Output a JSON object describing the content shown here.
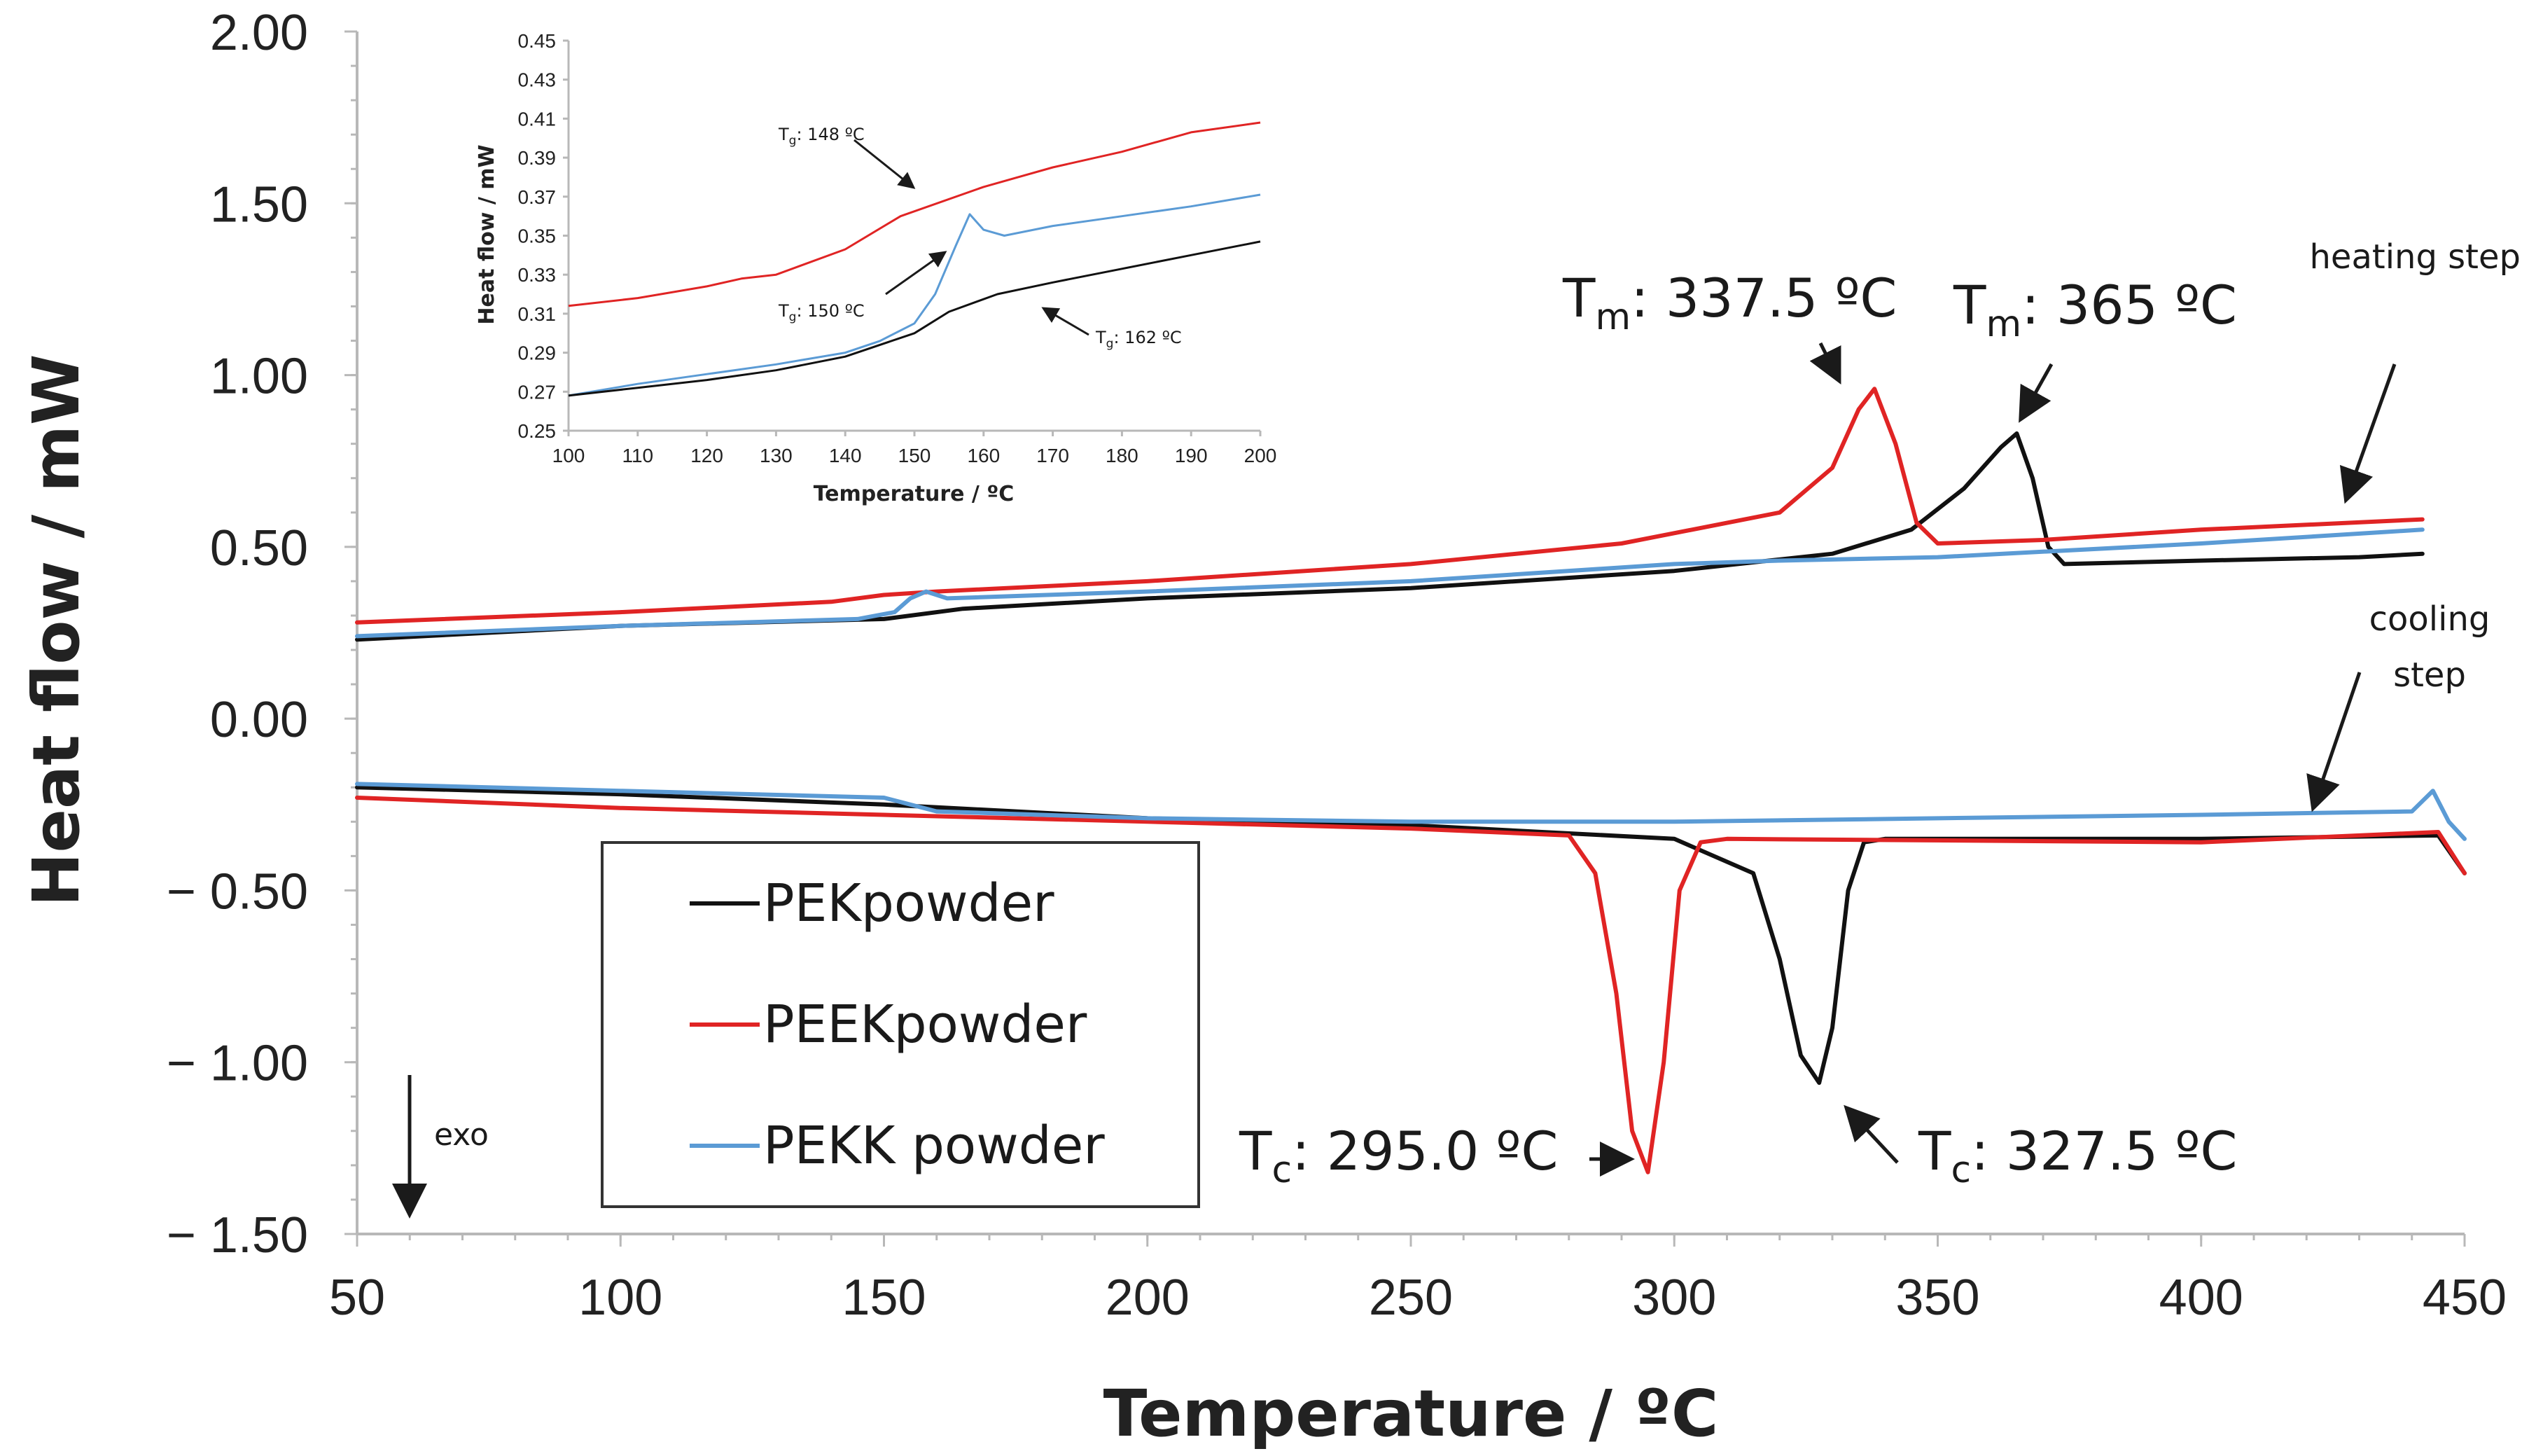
{
  "chart_data": [
    {
      "type": "line",
      "name": "main",
      "xlabel": "Temperature / ºC",
      "ylabel": "Heat flow / mW",
      "xlim": [
        50,
        450
      ],
      "ylim": [
        -1.5,
        2.0
      ],
      "x_ticks": [
        "50",
        "100",
        "150",
        "200",
        "250",
        "300",
        "350",
        "400",
        "450"
      ],
      "y_ticks": [
        "2.00",
        "1.50",
        "1.00",
        "0.50",
        "0.00",
        "− 0.50",
        "− 1.00",
        "− 1.50"
      ],
      "y_tick_values": [
        2.0,
        1.5,
        1.0,
        0.5,
        0.0,
        -0.5,
        -1.0,
        -1.5
      ],
      "legend": [
        {
          "label": "PEKpowder",
          "color": "#111111"
        },
        {
          "label": "PEEKpowder",
          "color": "#e02424"
        },
        {
          "label": "PEKK powder",
          "color": "#5b9bd5"
        }
      ],
      "series": [
        {
          "name": "PEK heating",
          "color": "#111111",
          "x": [
            50,
            100,
            150,
            165,
            200,
            250,
            300,
            330,
            345,
            355,
            362,
            365,
            368,
            371,
            374,
            400,
            430,
            442
          ],
          "y": [
            0.23,
            0.27,
            0.29,
            0.32,
            0.35,
            0.38,
            0.43,
            0.48,
            0.55,
            0.67,
            0.79,
            0.83,
            0.7,
            0.5,
            0.45,
            0.46,
            0.47,
            0.48
          ]
        },
        {
          "name": "PEEK heating",
          "color": "#e02424",
          "x": [
            50,
            100,
            140,
            150,
            160,
            200,
            250,
            290,
            320,
            330,
            335,
            338,
            342,
            346,
            350,
            370,
            400,
            442
          ],
          "y": [
            0.28,
            0.31,
            0.34,
            0.36,
            0.37,
            0.4,
            0.45,
            0.51,
            0.6,
            0.73,
            0.9,
            0.96,
            0.8,
            0.57,
            0.51,
            0.52,
            0.55,
            0.58
          ]
        },
        {
          "name": "PEKK heating",
          "color": "#5b9bd5",
          "x": [
            50,
            100,
            145,
            152,
            155,
            158,
            162,
            200,
            250,
            300,
            320,
            350,
            400,
            442
          ],
          "y": [
            0.24,
            0.27,
            0.29,
            0.31,
            0.35,
            0.37,
            0.35,
            0.37,
            0.4,
            0.45,
            0.46,
            0.47,
            0.51,
            0.55
          ]
        },
        {
          "name": "PEK cooling",
          "color": "#111111",
          "x": [
            50,
            100,
            150,
            200,
            250,
            300,
            315,
            320,
            324,
            327.5,
            330,
            333,
            336,
            340,
            400,
            445,
            450
          ],
          "y": [
            -0.2,
            -0.22,
            -0.25,
            -0.29,
            -0.31,
            -0.35,
            -0.45,
            -0.7,
            -0.98,
            -1.06,
            -0.9,
            -0.5,
            -0.36,
            -0.35,
            -0.35,
            -0.34,
            -0.45
          ]
        },
        {
          "name": "PEEK cooling",
          "color": "#e02424",
          "x": [
            50,
            100,
            150,
            200,
            250,
            280,
            285,
            289,
            292,
            295,
            298,
            301,
            305,
            310,
            400,
            445,
            450
          ],
          "y": [
            -0.23,
            -0.26,
            -0.28,
            -0.3,
            -0.32,
            -0.34,
            -0.45,
            -0.8,
            -1.2,
            -1.32,
            -1.0,
            -0.5,
            -0.36,
            -0.35,
            -0.36,
            -0.33,
            -0.45
          ]
        },
        {
          "name": "PEKK cooling",
          "color": "#5b9bd5",
          "x": [
            50,
            100,
            150,
            160,
            200,
            250,
            300,
            350,
            400,
            440,
            444,
            447,
            450
          ],
          "y": [
            -0.19,
            -0.21,
            -0.23,
            -0.27,
            -0.29,
            -0.3,
            -0.3,
            -0.29,
            -0.28,
            -0.27,
            -0.21,
            -0.3,
            -0.35
          ]
        }
      ],
      "annotations": {
        "tm_peek": {
          "label": "T",
          "sub": "m",
          "value": ": 337.5 ºC"
        },
        "tm_pek": {
          "label": "T",
          "sub": "m",
          "value": ": 365 ºC"
        },
        "tc_peek": {
          "label": "T",
          "sub": "c",
          "value": ": 295.0 ºC"
        },
        "tc_pek": {
          "label": "T",
          "sub": "c",
          "value": ": 327.5 ºC"
        },
        "heating": "heating step",
        "cooling_1": "cooling",
        "cooling_2": "step",
        "exo": "exo"
      }
    },
    {
      "type": "line",
      "name": "inset",
      "xlabel": "Temperature / ºC",
      "ylabel": "Heat flow / mW",
      "xlim": [
        100,
        200
      ],
      "ylim": [
        0.25,
        0.45
      ],
      "x_ticks": [
        "100",
        "110",
        "120",
        "130",
        "140",
        "150",
        "160",
        "170",
        "180",
        "190",
        "200"
      ],
      "y_ticks": [
        "0.45",
        "0.43",
        "0.41",
        "0.39",
        "0.37",
        "0.35",
        "0.33",
        "0.31",
        "0.29",
        "0.27",
        "0.25"
      ],
      "series": [
        {
          "name": "PEEK",
          "color": "#e02424",
          "x": [
            100,
            110,
            120,
            125,
            130,
            140,
            148,
            160,
            170,
            180,
            190,
            200
          ],
          "y": [
            0.314,
            0.318,
            0.324,
            0.328,
            0.33,
            0.343,
            0.36,
            0.375,
            0.385,
            0.393,
            0.403,
            0.408
          ]
        },
        {
          "name": "PEKK",
          "color": "#5b9bd5",
          "x": [
            100,
            110,
            120,
            130,
            140,
            145,
            150,
            153,
            156,
            158,
            160,
            163,
            170,
            180,
            190,
            200
          ],
          "y": [
            0.268,
            0.274,
            0.279,
            0.284,
            0.29,
            0.296,
            0.305,
            0.32,
            0.345,
            0.361,
            0.353,
            0.35,
            0.355,
            0.36,
            0.365,
            0.371
          ]
        },
        {
          "name": "PEK",
          "color": "#111111",
          "x": [
            100,
            110,
            120,
            130,
            140,
            150,
            155,
            162,
            170,
            180,
            190,
            200
          ],
          "y": [
            0.268,
            0.272,
            0.276,
            0.281,
            0.288,
            0.3,
            0.311,
            0.32,
            0.326,
            0.333,
            0.34,
            0.347
          ]
        }
      ],
      "annotations": {
        "tg_peek": {
          "label": "T",
          "sub": "g",
          "value": ": 148 ºC"
        },
        "tg_pekk": {
          "label": "T",
          "sub": "g",
          "value": ": 150 ºC"
        },
        "tg_pek": {
          "label": "T",
          "sub": "g",
          "value": ": 162 ºC"
        }
      }
    }
  ]
}
